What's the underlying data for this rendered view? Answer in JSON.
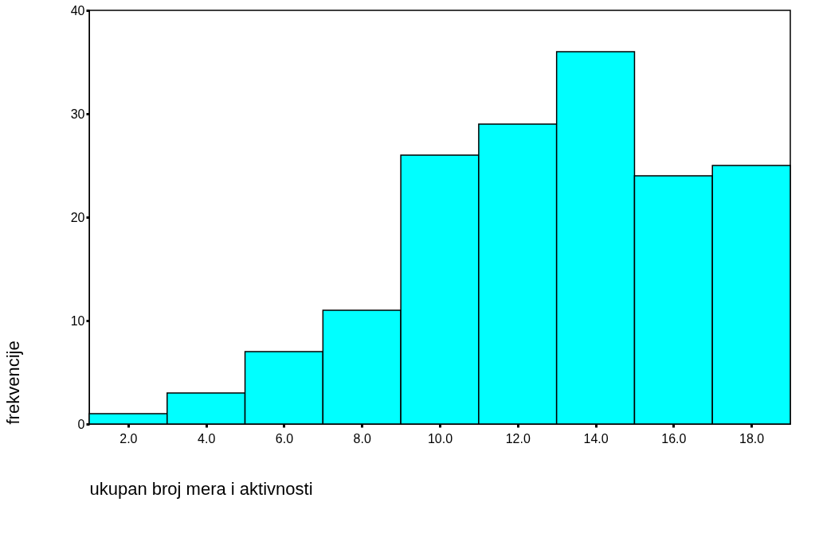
{
  "chart_data": {
    "type": "histogram",
    "xlabel": "ukupan broj mera i aktivnosti",
    "ylabel": "frekvencije",
    "bins": [
      1,
      3,
      5,
      7,
      9,
      11,
      13,
      15,
      17,
      19
    ],
    "values": [
      1,
      3,
      7,
      11,
      26,
      29,
      36,
      24,
      25
    ],
    "color": "#00ffff",
    "xlim": [
      1,
      19
    ],
    "xticks": [
      {
        "value": 2,
        "label": "2.0"
      },
      {
        "value": 4,
        "label": "4.0"
      },
      {
        "value": 6,
        "label": "6.0"
      },
      {
        "value": 8,
        "label": "8.0"
      },
      {
        "value": 10,
        "label": "10.0"
      },
      {
        "value": 12,
        "label": "12.0"
      },
      {
        "value": 14,
        "label": "14.0"
      },
      {
        "value": 16,
        "label": "16.0"
      },
      {
        "value": 18,
        "label": "18.0"
      }
    ],
    "ylim": [
      0,
      40
    ],
    "yticks": [
      0,
      10,
      20,
      30,
      40
    ],
    "grid": false
  }
}
